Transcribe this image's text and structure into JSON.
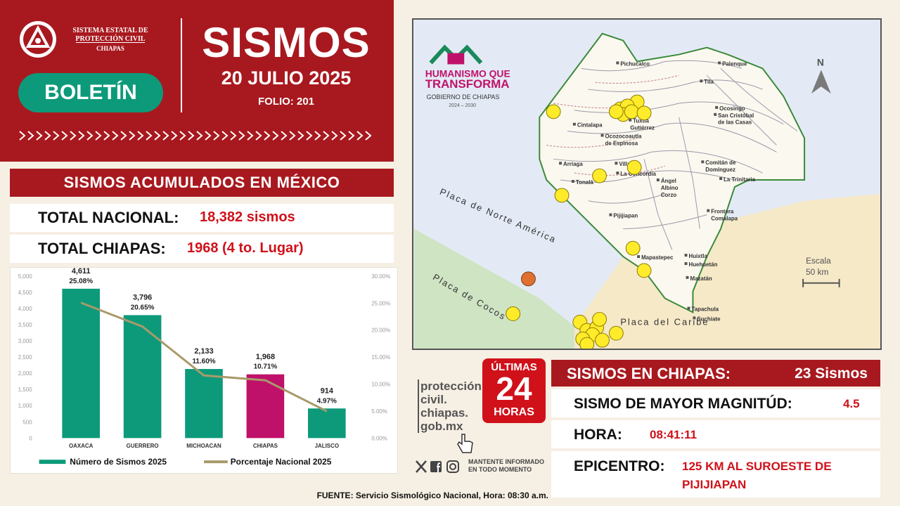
{
  "header": {
    "org_line1": "SISTEMA ESTATAL DE PROTECCIÓN CIVIL",
    "org_line2": "CHIAPAS",
    "badge_label": "BOLETÍN",
    "title": "SISMOS",
    "date": "20 JULIO 2025",
    "folio": "FOLIO: 201"
  },
  "acumulados": {
    "heading": "SISMOS ACUMULADOS EN MÉXICO",
    "nacional_label": "TOTAL NACIONAL:",
    "nacional_value": "18,382 sismos",
    "chiapas_label": "TOTAL CHIAPAS:",
    "chiapas_value": "1968 (4 to. Lugar)"
  },
  "chart_data": {
    "type": "bar",
    "categories": [
      "OAXACA",
      "GUERRERO",
      "MICHOACAN",
      "CHIAPAS",
      "JALISCO"
    ],
    "series": [
      {
        "name": "Número de Sismos 2025",
        "type": "bar",
        "values": [
          4611,
          3796,
          2133,
          1968,
          914
        ],
        "value_labels": [
          "4,611",
          "3,796",
          "2,133",
          "1,968",
          "914"
        ]
      },
      {
        "name": "Porcentaje Nacional 2025",
        "type": "line",
        "values": [
          25.08,
          20.65,
          11.6,
          10.71,
          4.97
        ],
        "value_labels": [
          "25.08%",
          "20.65%",
          "11.60%",
          "10.71%",
          "4.97%"
        ]
      }
    ],
    "ylim": [
      0,
      5000
    ],
    "y2lim": [
      0,
      30
    ],
    "y_ticks": [
      "0",
      "500",
      "1,000",
      "1,500",
      "2,000",
      "2,500",
      "3,000",
      "3,500",
      "4,000",
      "4,500",
      "5,000"
    ],
    "y2_ticks": [
      "0.00%",
      "5.00%",
      "10.00%",
      "15.00%",
      "20.00%",
      "25.00%",
      "30.00%"
    ],
    "bar_color": "#0d9a7a",
    "highlight_color": "#c0116a",
    "highlight_category": "CHIAPAS",
    "line_color": "#a89a6a",
    "legend_position": "bottom"
  },
  "map": {
    "logo_line1": "HUMANISMO QUE",
    "logo_line2": "TRANSFORMA",
    "logo_line3": "GOBIERNO DE CHIAPAS",
    "logo_line4": "2024 – 2030",
    "north": "N",
    "scale_label1": "Escala",
    "scale_label2": "50 km",
    "plates": [
      "Placa de Norte América",
      "Placa de Cocos",
      "Placa del Caribe"
    ],
    "cities": [
      "Pichucalco",
      "Palenque",
      "Tila",
      "Ocosingo",
      "San Cristóbal",
      "de las Casas",
      "Tuxtla",
      "Gutiérrez",
      "Cintalapa",
      "Ocozocoautla",
      "de Espinosa",
      "Villa",
      "Arriaga",
      "Tonalá",
      "La Concordia",
      "Ángel",
      "Albino",
      "Corzo",
      "Comitán de",
      "Domínguez",
      "La Trinitaria",
      "Pijijiapan",
      "Mapastepec",
      "Frontera",
      "Comalapa",
      "Huixtla",
      "Huehuetán",
      "Mazatán",
      "Tapachula",
      "Suchiate"
    ]
  },
  "social": {
    "web": [
      "protección",
      "civil.",
      "chiapas.",
      "gob.mx"
    ],
    "mantente1": "MANTENTE INFORMADO",
    "mantente2": "EN TODO MOMENTO"
  },
  "ultimas": {
    "line1": "ÚLTIMAS",
    "line2": "24",
    "line3": "HORAS"
  },
  "chiapas": {
    "heading": "SISMOS EN CHIAPAS:",
    "count": "23 Sismos",
    "mayor_label": "SISMO DE MAYOR MAGNITÚD:",
    "mayor_value": "4.5",
    "hora_label": "HORA:",
    "hora_value": "08:41:11",
    "epi_label": "EPICENTRO:",
    "epi_line1": "125  KM AL SUROESTE DE",
    "epi_line2": "PIJIJIAPAN"
  },
  "fuente": "FUENTE: Servicio Sismológico Nacional, Hora: 08:30 a.m."
}
